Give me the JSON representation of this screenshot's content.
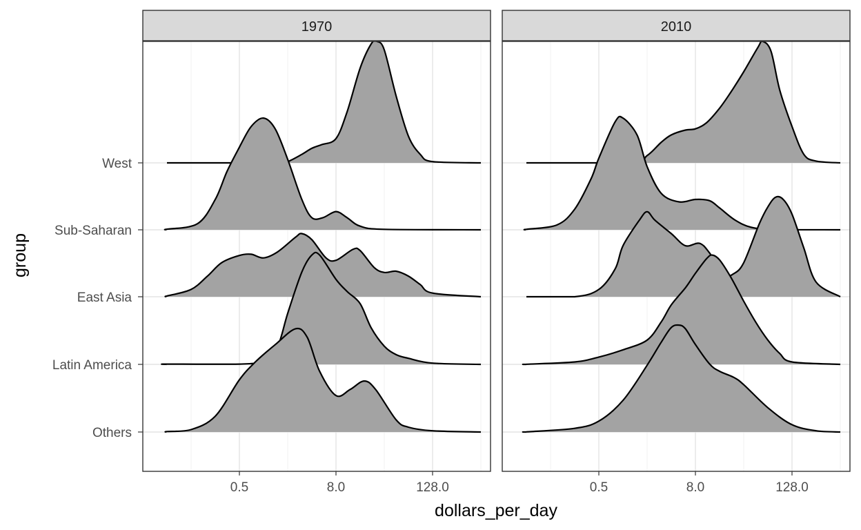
{
  "chart_data": {
    "type": "ridgeline",
    "xlabel": "dollars_per_day",
    "ylabel": "group",
    "x_scale": "log2",
    "x_ticks": [
      "0.5",
      "8.0",
      "128.0"
    ],
    "groups": [
      "West",
      "Sub-Saharan",
      "East Asia",
      "Latin America",
      "Others"
    ],
    "fill_color": "#a3a3a3",
    "line_color": "#000000",
    "grid": true,
    "panels": [
      {
        "label": "1970",
        "x_range": [
          0.0625,
          512
        ],
        "densities": [
          {
            "group": "West",
            "points": [
              [
                0.0625,
                0
              ],
              [
                0.5,
                0
              ],
              [
                1.6,
                0.006
              ],
              [
                2,
                0.01
              ],
              [
                3,
                0.07
              ],
              [
                4,
                0.12
              ],
              [
                5.3,
                0.15
              ],
              [
                8,
                0.2
              ],
              [
                11,
                0.42
              ],
              [
                16,
                0.78
              ],
              [
                22,
                0.98
              ],
              [
                26,
                1.0
              ],
              [
                32,
                0.93
              ],
              [
                45,
                0.55
              ],
              [
                64,
                0.22
              ],
              [
                90,
                0.07
              ],
              [
                128,
                0.01
              ],
              [
                512,
                0
              ]
            ]
          },
          {
            "group": "Sub-Saharan",
            "points": [
              [
                0.0625,
                0
              ],
              [
                0.0625,
                0.005
              ],
              [
                0.15,
                0.05
              ],
              [
                0.25,
                0.25
              ],
              [
                0.35,
                0.48
              ],
              [
                0.5,
                0.68
              ],
              [
                0.7,
                0.85
              ],
              [
                1,
                0.92
              ],
              [
                1.4,
                0.83
              ],
              [
                2,
                0.58
              ],
              [
                3,
                0.25
              ],
              [
                4,
                0.1
              ],
              [
                5.5,
                0.1
              ],
              [
                8,
                0.15
              ],
              [
                11,
                0.1
              ],
              [
                16,
                0.03
              ],
              [
                32,
                0.004
              ],
              [
                512,
                0
              ]
            ]
          },
          {
            "group": "East Asia",
            "points": [
              [
                0.0625,
                0
              ],
              [
                0.0625,
                0.006
              ],
              [
                0.125,
                0.06
              ],
              [
                0.2,
                0.17
              ],
              [
                0.3,
                0.28
              ],
              [
                0.5,
                0.34
              ],
              [
                0.7,
                0.35
              ],
              [
                1,
                0.32
              ],
              [
                1.5,
                0.37
              ],
              [
                2.5,
                0.49
              ],
              [
                3,
                0.52
              ],
              [
                4,
                0.47
              ],
              [
                6,
                0.32
              ],
              [
                8,
                0.3
              ],
              [
                13,
                0.39
              ],
              [
                16,
                0.38
              ],
              [
                24,
                0.24
              ],
              [
                32,
                0.2
              ],
              [
                45,
                0.21
              ],
              [
                64,
                0.17
              ],
              [
                90,
                0.1
              ],
              [
                128,
                0.03
              ],
              [
                512,
                0
              ]
            ]
          },
          {
            "group": "Latin America",
            "points": [
              [
                0.0625,
                0
              ],
              [
                0.0625,
                0.002
              ],
              [
                0.5,
                0.002
              ],
              [
                1,
                0.03
              ],
              [
                1.5,
                0.15
              ],
              [
                2,
                0.42
              ],
              [
                3,
                0.76
              ],
              [
                4,
                0.9
              ],
              [
                5,
                0.9
              ],
              [
                8,
                0.7
              ],
              [
                11,
                0.6
              ],
              [
                16,
                0.5
              ],
              [
                22,
                0.3
              ],
              [
                32,
                0.15
              ],
              [
                45,
                0.08
              ],
              [
                64,
                0.05
              ],
              [
                128,
                0.01
              ],
              [
                512,
                0
              ]
            ]
          },
          {
            "group": "Others",
            "points": [
              [
                0.0625,
                0
              ],
              [
                0.0625,
                0.004
              ],
              [
                0.125,
                0.02
              ],
              [
                0.25,
                0.13
              ],
              [
                0.5,
                0.43
              ],
              [
                0.8,
                0.58
              ],
              [
                1.4,
                0.72
              ],
              [
                2.5,
                0.85
              ],
              [
                3.5,
                0.78
              ],
              [
                5,
                0.5
              ],
              [
                8,
                0.3
              ],
              [
                12,
                0.35
              ],
              [
                18,
                0.42
              ],
              [
                25,
                0.35
              ],
              [
                45,
                0.1
              ],
              [
                64,
                0.04
              ],
              [
                128,
                0.01
              ],
              [
                512,
                0
              ]
            ]
          }
        ]
      },
      {
        "label": "2010",
        "x_range": [
          0.0625,
          512
        ],
        "densities": [
          {
            "group": "West",
            "points": [
              [
                0.0625,
                0
              ],
              [
                1.2,
                0
              ],
              [
                2,
                0.06
              ],
              [
                3,
                0.17
              ],
              [
                4,
                0.23
              ],
              [
                6,
                0.27
              ],
              [
                8,
                0.28
              ],
              [
                11,
                0.33
              ],
              [
                16,
                0.45
              ],
              [
                22,
                0.58
              ],
              [
                32,
                0.75
              ],
              [
                48,
                0.95
              ],
              [
                55,
                1.0
              ],
              [
                70,
                0.92
              ],
              [
                90,
                0.6
              ],
              [
                128,
                0.3
              ],
              [
                180,
                0.07
              ],
              [
                256,
                0.015
              ],
              [
                512,
                0
              ]
            ]
          },
          {
            "group": "Sub-Saharan",
            "points": [
              [
                0.0625,
                0
              ],
              [
                0.0625,
                0.004
              ],
              [
                0.15,
                0.04
              ],
              [
                0.25,
                0.17
              ],
              [
                0.4,
                0.42
              ],
              [
                0.5,
                0.59
              ],
              [
                0.8,
                0.89
              ],
              [
                1,
                0.92
              ],
              [
                1.5,
                0.78
              ],
              [
                2,
                0.52
              ],
              [
                3,
                0.3
              ],
              [
                5,
                0.23
              ],
              [
                8,
                0.25
              ],
              [
                12,
                0.24
              ],
              [
                16,
                0.18
              ],
              [
                25,
                0.08
              ],
              [
                40,
                0.02
              ],
              [
                80,
                0.002
              ],
              [
                512,
                0
              ]
            ]
          },
          {
            "group": "East Asia",
            "points": [
              [
                0.0625,
                0
              ],
              [
                0.25,
                0
              ],
              [
                0.5,
                0.06
              ],
              [
                0.8,
                0.23
              ],
              [
                1,
                0.42
              ],
              [
                1.6,
                0.63
              ],
              [
                2,
                0.7
              ],
              [
                2.5,
                0.63
              ],
              [
                4,
                0.52
              ],
              [
                6,
                0.42
              ],
              [
                9,
                0.44
              ],
              [
                12,
                0.36
              ],
              [
                18,
                0.18
              ],
              [
                24,
                0.19
              ],
              [
                32,
                0.28
              ],
              [
                50,
                0.6
              ],
              [
                64,
                0.74
              ],
              [
                80,
                0.82
              ],
              [
                100,
                0.8
              ],
              [
                128,
                0.68
              ],
              [
                180,
                0.4
              ],
              [
                256,
                0.12
              ],
              [
                512,
                0
              ]
            ]
          },
          {
            "group": "Latin America",
            "points": [
              [
                0.0625,
                0
              ],
              [
                0.0625,
                0.001
              ],
              [
                0.25,
                0.02
              ],
              [
                0.5,
                0.06
              ],
              [
                1,
                0.12
              ],
              [
                2,
                0.2
              ],
              [
                3,
                0.35
              ],
              [
                4,
                0.49
              ],
              [
                6,
                0.63
              ],
              [
                8,
                0.75
              ],
              [
                11,
                0.87
              ],
              [
                13,
                0.9
              ],
              [
                16,
                0.86
              ],
              [
                22,
                0.72
              ],
              [
                32,
                0.52
              ],
              [
                45,
                0.35
              ],
              [
                64,
                0.2
              ],
              [
                90,
                0.09
              ],
              [
                128,
                0.02
              ],
              [
                512,
                0
              ]
            ]
          },
          {
            "group": "Others",
            "points": [
              [
                0.0625,
                0
              ],
              [
                0.0625,
                0.001
              ],
              [
                0.25,
                0.03
              ],
              [
                0.5,
                0.09
              ],
              [
                1,
                0.26
              ],
              [
                2,
                0.55
              ],
              [
                3,
                0.74
              ],
              [
                4,
                0.86
              ],
              [
                5,
                0.88
              ],
              [
                6,
                0.85
              ],
              [
                8,
                0.72
              ],
              [
                12,
                0.56
              ],
              [
                16,
                0.5
              ],
              [
                24,
                0.45
              ],
              [
                32,
                0.39
              ],
              [
                64,
                0.2
              ],
              [
                128,
                0.06
              ],
              [
                256,
                0.01
              ],
              [
                512,
                0
              ]
            ]
          }
        ]
      }
    ]
  }
}
